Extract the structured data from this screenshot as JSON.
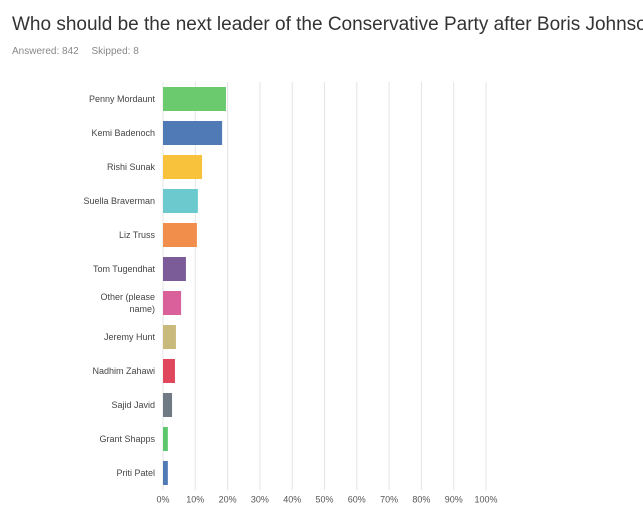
{
  "chart_data": {
    "type": "barh",
    "title": "Who should be the next leader of the Conservative Party after Boris Johnson?",
    "answered": "Answered: 842",
    "skipped": "Skipped: 8",
    "categories": [
      "Penny Mordaunt",
      "Kemi Badenoch",
      "Rishi Sunak",
      "Suella Braverman",
      "Liz Truss",
      "Tom Tugendhat",
      "Other (please name)",
      "Jeremy Hunt",
      "Nadhim Zahawi",
      "Sajid Javid",
      "Grant Shapps",
      "Priti Patel"
    ],
    "values": [
      19.5,
      18.3,
      12.1,
      10.8,
      10.5,
      7.1,
      5.6,
      4.0,
      3.7,
      2.8,
      1.5,
      1.5
    ],
    "colors": [
      "#6bc96e",
      "#4f7ab5",
      "#f9c23c",
      "#6ccacf",
      "#f28e4c",
      "#7c5b99",
      "#d9609a",
      "#c9b97b",
      "#e0475c",
      "#6f7a84",
      "#5cc86b",
      "#4f7ab5"
    ],
    "xlim": [
      0,
      100
    ],
    "xticks": [
      {
        "value": 0,
        "label": "0%"
      },
      {
        "value": 10,
        "label": "10%"
      },
      {
        "value": 20,
        "label": "20%"
      },
      {
        "value": 30,
        "label": "30%"
      },
      {
        "value": 40,
        "label": "40%"
      },
      {
        "value": 50,
        "label": "50%"
      },
      {
        "value": 60,
        "label": "60%"
      },
      {
        "value": 70,
        "label": "70%"
      },
      {
        "value": 80,
        "label": "80%"
      },
      {
        "value": 90,
        "label": "90%"
      },
      {
        "value": 100,
        "label": "100%"
      }
    ],
    "grid": true
  }
}
